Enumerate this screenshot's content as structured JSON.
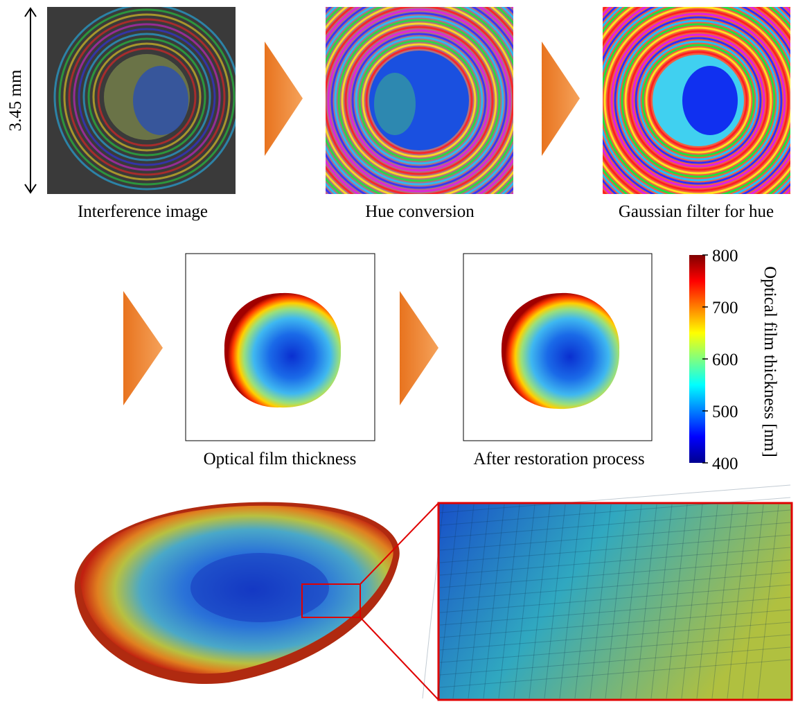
{
  "panels": [
    {
      "caption": "Interference image"
    },
    {
      "caption": "Hue conversion"
    },
    {
      "caption": "Gaussian filter for hue"
    },
    {
      "caption": "Optical film thickness"
    },
    {
      "caption": "After restoration process"
    }
  ],
  "scale_bar": {
    "label": "3.45 mm"
  },
  "colorbar": {
    "label": "Optical film thickness [nm]",
    "ticks": [
      400,
      500,
      600,
      700,
      800
    ]
  }
}
